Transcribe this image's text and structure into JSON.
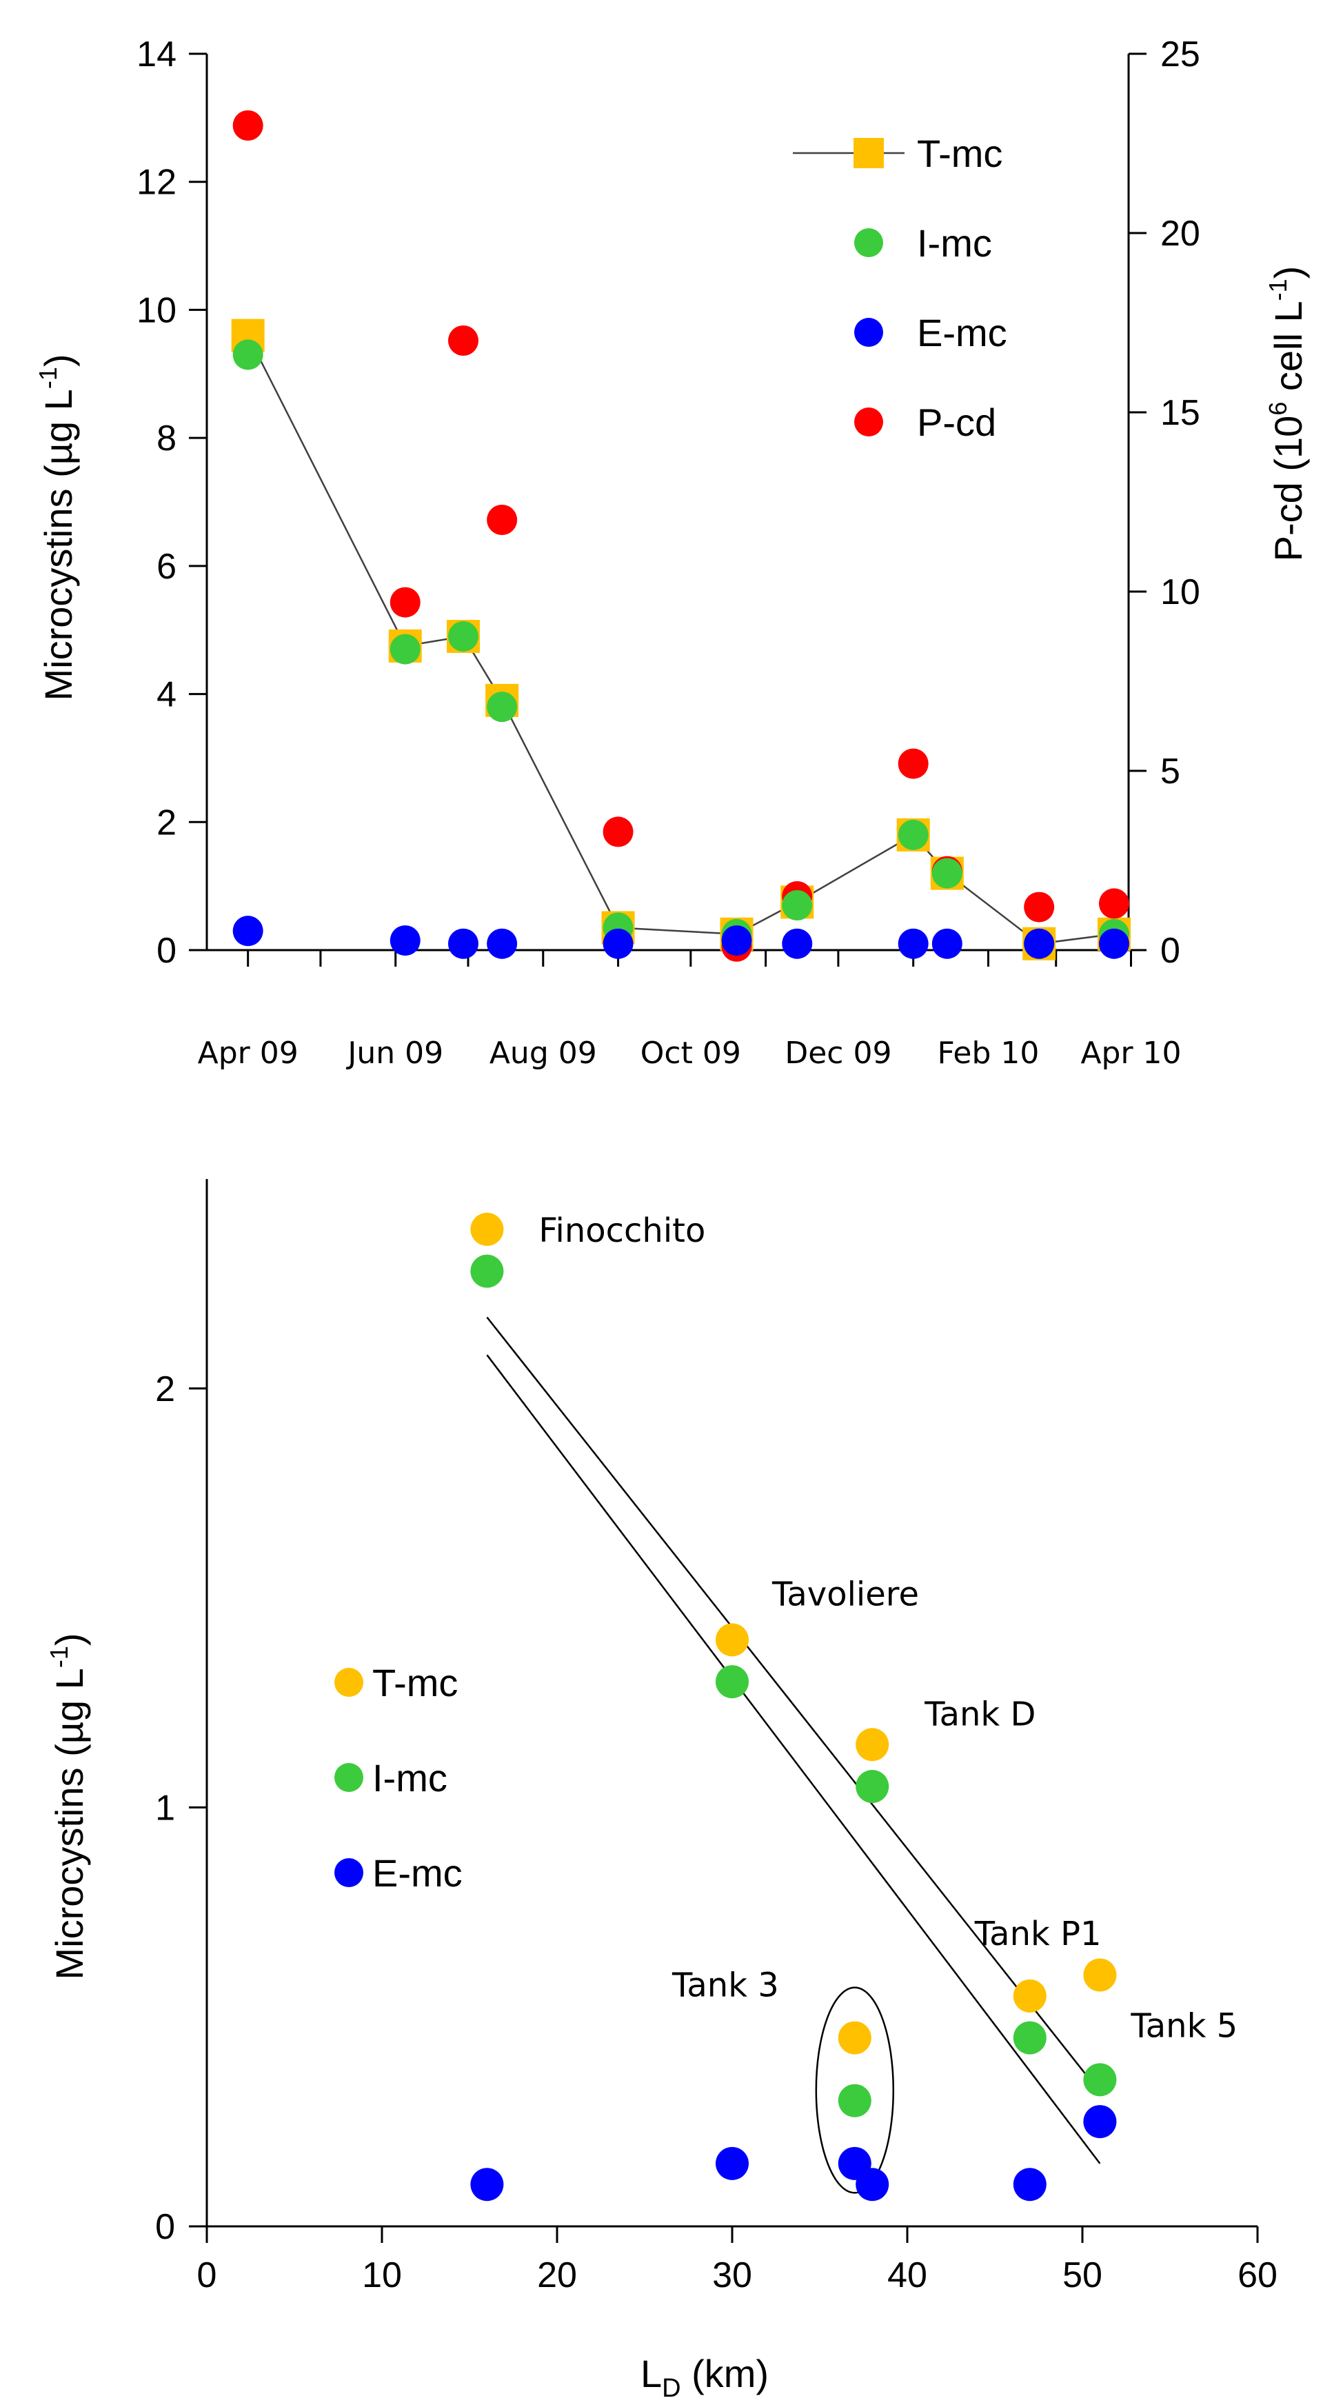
{
  "chart_data": [
    {
      "type": "scatter",
      "title": "",
      "ylabel": "Microcystins (µg L",
      "ylabel_sup": "-1",
      "ylabel_end": ")",
      "y2label": "P-cd (10",
      "y2label_sup1": "6",
      "y2label_mid": " cell L",
      "y2label_sup2": "-1",
      "y2label_end": ")",
      "x_range": [
        "2009-03-15",
        "2010-03-31"
      ],
      "ylim": [
        0,
        14
      ],
      "yticks": [
        0,
        2,
        4,
        6,
        8,
        10,
        12,
        14
      ],
      "y2lim": [
        0,
        25
      ],
      "y2ticks": [
        0,
        5,
        10,
        15,
        20,
        25
      ],
      "x_tick_labels": [
        "Apr 09",
        "Jun 09",
        "Aug 09",
        "Oct 09",
        "Dec 09",
        "Feb 10",
        "Apr 10"
      ],
      "legend_position": "top-right",
      "series": [
        {
          "name": "T-mc",
          "axis": "left",
          "marker": "square",
          "color": "#FFC000",
          "line": true,
          "points": [
            [
              "2009-04-01",
              9.6
            ],
            [
              "2009-06-05",
              4.75
            ],
            [
              "2009-06-29",
              4.9
            ],
            [
              "2009-07-15",
              3.9
            ],
            [
              "2009-09-01",
              0.35
            ],
            [
              "2009-10-20",
              0.25
            ],
            [
              "2009-11-14",
              0.75
            ],
            [
              "2010-01-01",
              1.8
            ],
            [
              "2010-01-15",
              1.2
            ],
            [
              "2010-02-22",
              0.1
            ],
            [
              "2010-03-25",
              0.25
            ]
          ]
        },
        {
          "name": "I-mc",
          "axis": "left",
          "marker": "circle",
          "color": "#3CCB3C",
          "line": false,
          "points": [
            [
              "2009-04-01",
              9.3
            ],
            [
              "2009-06-05",
              4.7
            ],
            [
              "2009-06-29",
              4.9
            ],
            [
              "2009-07-15",
              3.8
            ],
            [
              "2009-09-01",
              0.35
            ],
            [
              "2009-10-20",
              0.25
            ],
            [
              "2009-11-14",
              0.7
            ],
            [
              "2010-01-01",
              1.8
            ],
            [
              "2010-01-15",
              1.2
            ],
            [
              "2010-02-22",
              0.1
            ],
            [
              "2010-03-25",
              0.25
            ]
          ]
        },
        {
          "name": "E-mc",
          "axis": "left",
          "marker": "circle",
          "color": "#0000FF",
          "line": false,
          "points": [
            [
              "2009-04-01",
              0.3
            ],
            [
              "2009-06-05",
              0.15
            ],
            [
              "2009-06-29",
              0.1
            ],
            [
              "2009-07-15",
              0.1
            ],
            [
              "2009-09-01",
              0.1
            ],
            [
              "2009-10-20",
              0.15
            ],
            [
              "2009-11-14",
              0.1
            ],
            [
              "2010-01-01",
              0.1
            ],
            [
              "2010-01-15",
              0.1
            ],
            [
              "2010-02-22",
              0.1
            ],
            [
              "2010-03-25",
              0.1
            ]
          ]
        },
        {
          "name": "P-cd",
          "axis": "right",
          "marker": "circle",
          "color": "#FF0000",
          "line": false,
          "points": [
            [
              "2009-04-01",
              23.0
            ],
            [
              "2009-06-05",
              9.7
            ],
            [
              "2009-06-29",
              17.0
            ],
            [
              "2009-07-15",
              12.0
            ],
            [
              "2009-09-01",
              3.3
            ],
            [
              "2009-10-20",
              0.1
            ],
            [
              "2009-11-14",
              1.5
            ],
            [
              "2010-01-01",
              5.2
            ],
            [
              "2010-01-15",
              2.2
            ],
            [
              "2010-02-22",
              1.2
            ],
            [
              "2010-03-25",
              1.3
            ]
          ]
        }
      ]
    },
    {
      "type": "scatter",
      "title": "",
      "xlabel": "L",
      "xlabel_sub": "D",
      "xlabel_end": " (km)",
      "ylabel": "Microcystins (µg L",
      "ylabel_sup": "-1",
      "ylabel_end": ")",
      "xlim": [
        0,
        60
      ],
      "xticks": [
        0,
        10,
        20,
        30,
        40,
        50,
        60
      ],
      "ylim": [
        0,
        2.5
      ],
      "yticks": [
        0,
        1,
        2
      ],
      "legend_position": "center-left",
      "series": [
        {
          "name": "T-mc",
          "color": "#FFC000",
          "points": [
            [
              16,
              2.38
            ],
            [
              30,
              1.4
            ],
            [
              38,
              1.15
            ],
            [
              37,
              0.45
            ],
            [
              47,
              0.55
            ],
            [
              51,
              0.6
            ]
          ]
        },
        {
          "name": "I-mc",
          "color": "#3CCB3C",
          "points": [
            [
              16,
              2.28
            ],
            [
              30,
              1.3
            ],
            [
              38,
              1.05
            ],
            [
              37,
              0.3
            ],
            [
              47,
              0.45
            ],
            [
              51,
              0.35
            ]
          ]
        },
        {
          "name": "E-mc",
          "color": "#0000FF",
          "points": [
            [
              16,
              0.1
            ],
            [
              30,
              0.15
            ],
            [
              37,
              0.15
            ],
            [
              38,
              0.1
            ],
            [
              47,
              0.1
            ],
            [
              51,
              0.25
            ]
          ]
        }
      ],
      "trend_lines": [
        {
          "x": [
            16,
            51
          ],
          "y": [
            2.17,
            0.32
          ]
        },
        {
          "x": [
            16,
            51
          ],
          "y": [
            2.08,
            0.15
          ]
        }
      ],
      "annotations": [
        {
          "text": "Finocchito",
          "x": 16,
          "y": 2.38
        },
        {
          "text": "Tavoliere",
          "x": 30,
          "y": 1.4
        },
        {
          "text": "Tank D",
          "x": 38,
          "y": 1.15
        },
        {
          "text": "Tank P1",
          "x": 47,
          "y": 0.55
        },
        {
          "text": "Tank 5",
          "x": 51,
          "y": 0.35
        },
        {
          "text": "Tank 3",
          "x": 37,
          "y": 0.45
        }
      ],
      "highlight_ellipse": {
        "x": 37,
        "y_min": 0.08,
        "y_max": 0.57
      }
    }
  ]
}
